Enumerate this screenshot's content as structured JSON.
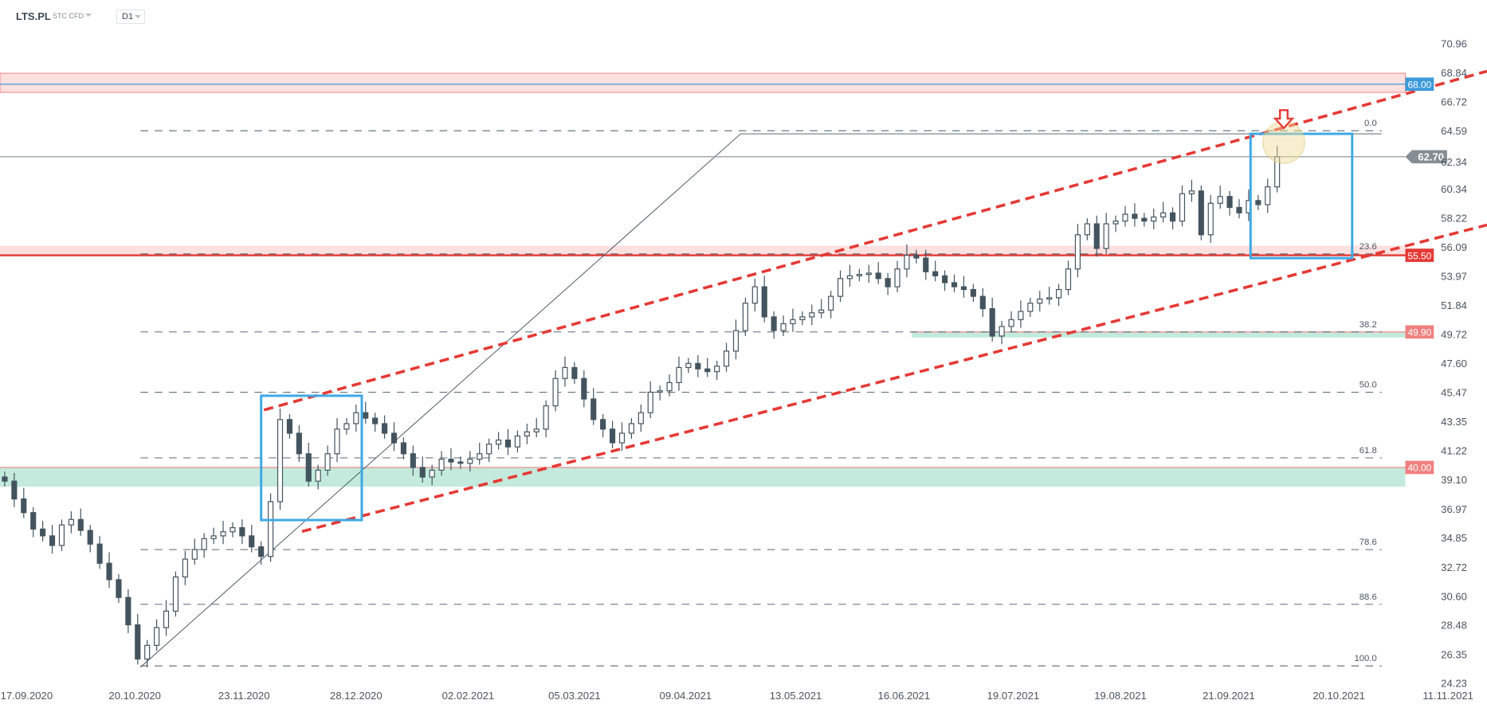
{
  "header": {
    "symbol": "LTS.PL",
    "type": "STC CFD",
    "timeframe": "D1"
  },
  "chart_data": {
    "type": "candlestick",
    "title": "",
    "y_ticks": [
      "70.96",
      "68.84",
      "66.72",
      "64.59",
      "62.34",
      "60.34",
      "58.22",
      "56.09",
      "53.97",
      "51.84",
      "49.72",
      "47.60",
      "45.47",
      "43.35",
      "41.22",
      "39.10",
      "36.97",
      "34.85",
      "32.72",
      "30.60",
      "28.48",
      "26.35",
      "24.23"
    ],
    "x_ticks": [
      "17.09.2020",
      "20.10.2020",
      "23.11.2020",
      "28.12.2020",
      "02.02.2021",
      "05.03.2021",
      "09.04.2021",
      "13.05.2021",
      "16.06.2021",
      "19.07.2021",
      "19.08.2021",
      "21.09.2021",
      "20.10.2021",
      "11.11.2021"
    ],
    "ylim": [
      24.23,
      70.96
    ],
    "closes": [
      39.0,
      37.7,
      36.7,
      35.5,
      35.0,
      34.3,
      35.8,
      36.2,
      35.4,
      34.4,
      33.0,
      31.8,
      30.5,
      28.5,
      26.0,
      27.0,
      28.3,
      29.5,
      32.0,
      33.3,
      34.0,
      34.8,
      35.0,
      35.3,
      35.6,
      35.0,
      34.2,
      33.5,
      37.5,
      43.5,
      42.5,
      41.0,
      39.0,
      39.8,
      41.0,
      42.8,
      43.2,
      44.0,
      43.6,
      43.2,
      42.5,
      41.8,
      41.0,
      40.0,
      39.3,
      39.8,
      40.6,
      40.4,
      40.3,
      40.6,
      41.0,
      41.7,
      42.0,
      41.5,
      42.3,
      42.6,
      42.8,
      44.5,
      46.5,
      47.3,
      46.5,
      45.0,
      43.5,
      42.8,
      41.8,
      42.5,
      43.2,
      44.0,
      45.5,
      45.6,
      46.2,
      47.3,
      47.6,
      47.2,
      47.0,
      47.4,
      48.5,
      50.0,
      52.0,
      53.2,
      51.0,
      50.0,
      50.5,
      50.8,
      51.0,
      51.3,
      51.5,
      52.5,
      53.8,
      54.0,
      54.1,
      54.2,
      53.8,
      53.2,
      54.5,
      55.5,
      55.3,
      54.3,
      54.0,
      53.5,
      53.2,
      53.0,
      52.5,
      51.6,
      49.6,
      50.3,
      50.8,
      51.4,
      52.0,
      52.3,
      52.4,
      53.0,
      54.5,
      57.0,
      57.8,
      56.0,
      57.8,
      58.0,
      58.5,
      58.2,
      58.0,
      58.3,
      58.6,
      58.0,
      60.0,
      60.2,
      57.0,
      59.3,
      59.8,
      59.0,
      58.6,
      59.5,
      59.2,
      60.5,
      62.7
    ],
    "current_price": {
      "value": 62.7,
      "label": "62.70",
      "color": "#868e93"
    },
    "levels": [
      {
        "label": "68.00",
        "value": 68.0,
        "zone": [
          67.4,
          68.8
        ],
        "color": "#3b9ad9",
        "zone_color": "#fde0e0"
      },
      {
        "label": "55.50",
        "value": 55.5,
        "zone": [
          55.5,
          56.2
        ],
        "color": "#e53935",
        "zone_color": "#fde0e0"
      },
      {
        "label": "49.90",
        "value": 49.9,
        "zone": [
          49.5,
          49.9
        ],
        "color": "#f08080",
        "zone_color": "#c3eadc"
      },
      {
        "label": "40.00",
        "value": 40.0,
        "zone": [
          38.6,
          40.0
        ],
        "color": "#f08080",
        "zone_color": "#c3eadc"
      }
    ],
    "fibonacci": [
      {
        "label": "0.0",
        "value": 64.6
      },
      {
        "label": "23.6",
        "value": 55.6
      },
      {
        "label": "38.2",
        "value": 49.9
      },
      {
        "label": "50.0",
        "value": 45.5
      },
      {
        "label": "61.8",
        "value": 40.7
      },
      {
        "label": "78.6",
        "value": 34.0
      },
      {
        "label": "88.6",
        "value": 30.0
      },
      {
        "label": "100.0",
        "value": 25.5
      }
    ],
    "colors": {
      "candle": "#44545f",
      "channel": "#e53935",
      "box": "#3ea9e5"
    }
  }
}
